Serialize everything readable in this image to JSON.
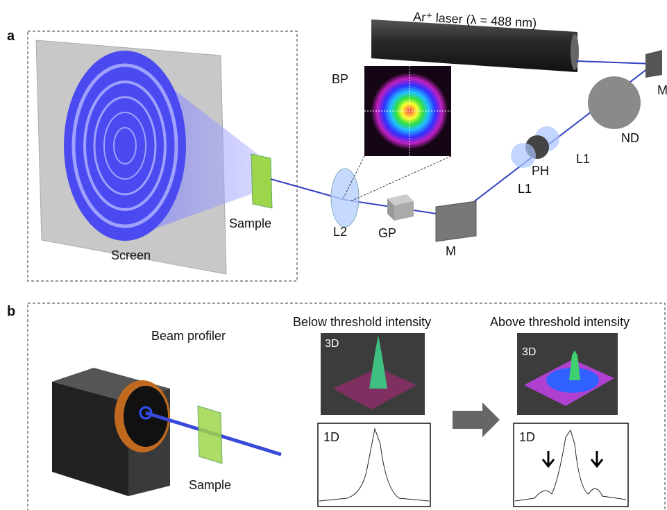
{
  "panel_a": {
    "label": "a",
    "laser": "Ar⁺ laser (λ = 488 nm)",
    "beam_profile": "BP",
    "mirror_top": "M",
    "neutral_density": "ND",
    "lens_1a": "L1",
    "pinhole": "PH",
    "lens_1b": "L1",
    "sample": "Sample",
    "screen": "Screen",
    "lens_2": "L2",
    "glass_plate": "GP",
    "mirror_bottom": "M"
  },
  "panel_b": {
    "label": "b",
    "beam_profiler": "Beam profiler",
    "sample": "Sample",
    "below": {
      "title": "Below threshold intensity",
      "plot_3d": "3D",
      "plot_1d": "1D"
    },
    "above": {
      "title": "Above threshold intensity",
      "plot_3d": "3D",
      "plot_1d": "1D"
    }
  }
}
